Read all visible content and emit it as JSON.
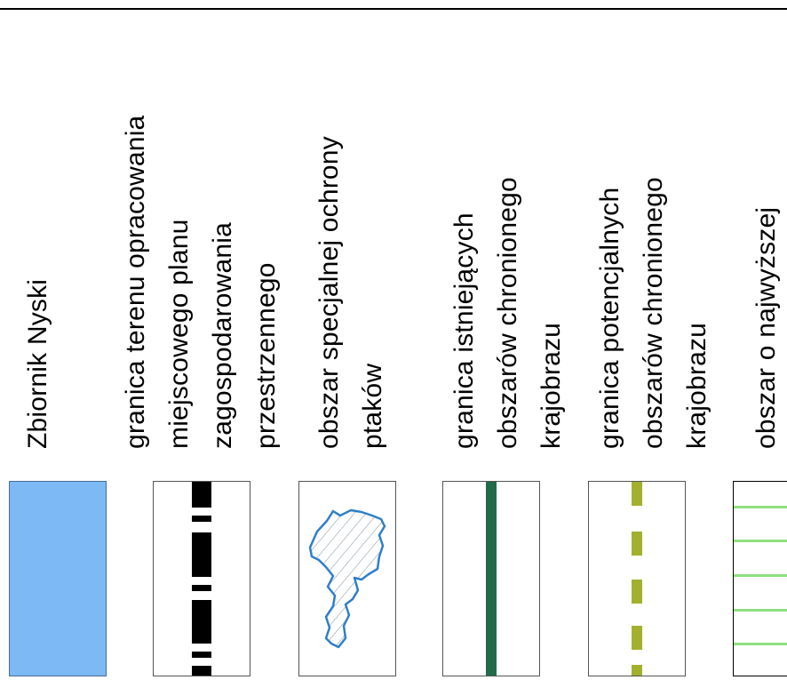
{
  "legend": {
    "items": [
      {
        "id": "reservoir",
        "label": "Zbiornik Nyski",
        "color": "#7cb9f5"
      },
      {
        "id": "plan-boundary",
        "label": "granica terenu opracowania\nmiejscowego planu\nzagospodarowania\nprzestrzennego",
        "color": "#000000"
      },
      {
        "id": "bird-area",
        "label": "obszar specjalnej ochrony\nptaków",
        "color": "#3a8ed0"
      },
      {
        "id": "existing-landscape",
        "label": "granica istniejących\nobszarów chronionego\nkrajobrazu",
        "color": "#1f6b4a"
      },
      {
        "id": "potential-landscape",
        "label": "granica potencjalnych\nobszarów chronionego\nkrajobrazu",
        "color": "#a3b02e"
      },
      {
        "id": "highest-area",
        "label": "obszar o najwyższej",
        "color": "#8fe07f"
      }
    ]
  }
}
